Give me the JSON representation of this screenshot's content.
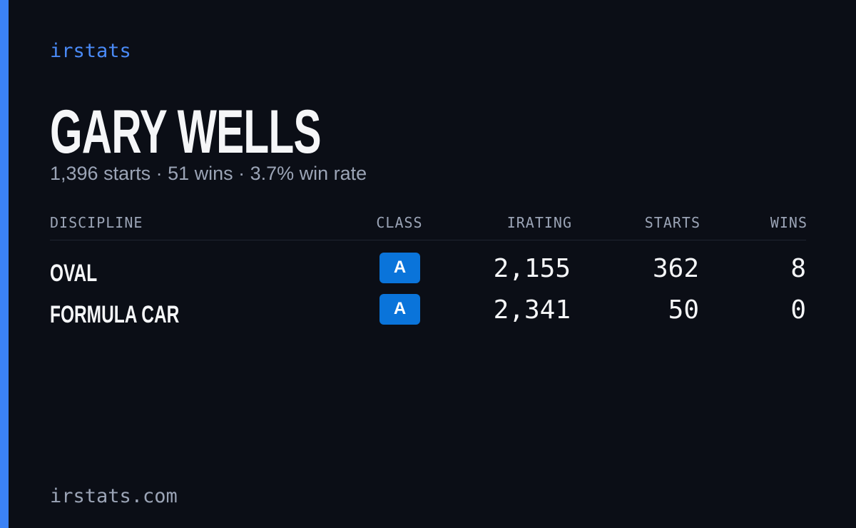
{
  "brand": "irstats",
  "header": {
    "title": "GARY WELLS",
    "subtitle": "1,396 starts · 51 wins · 3.7% win rate"
  },
  "table": {
    "columns": [
      "DISCIPLINE",
      "CLASS",
      "IRATING",
      "STARTS",
      "WINS"
    ],
    "rows": [
      [
        "OVAL",
        "A",
        "2,155",
        "362",
        "8"
      ],
      [
        "FORMULA CAR",
        "A",
        "2,341",
        "50",
        "0"
      ]
    ]
  },
  "footer": "irstats.com"
}
